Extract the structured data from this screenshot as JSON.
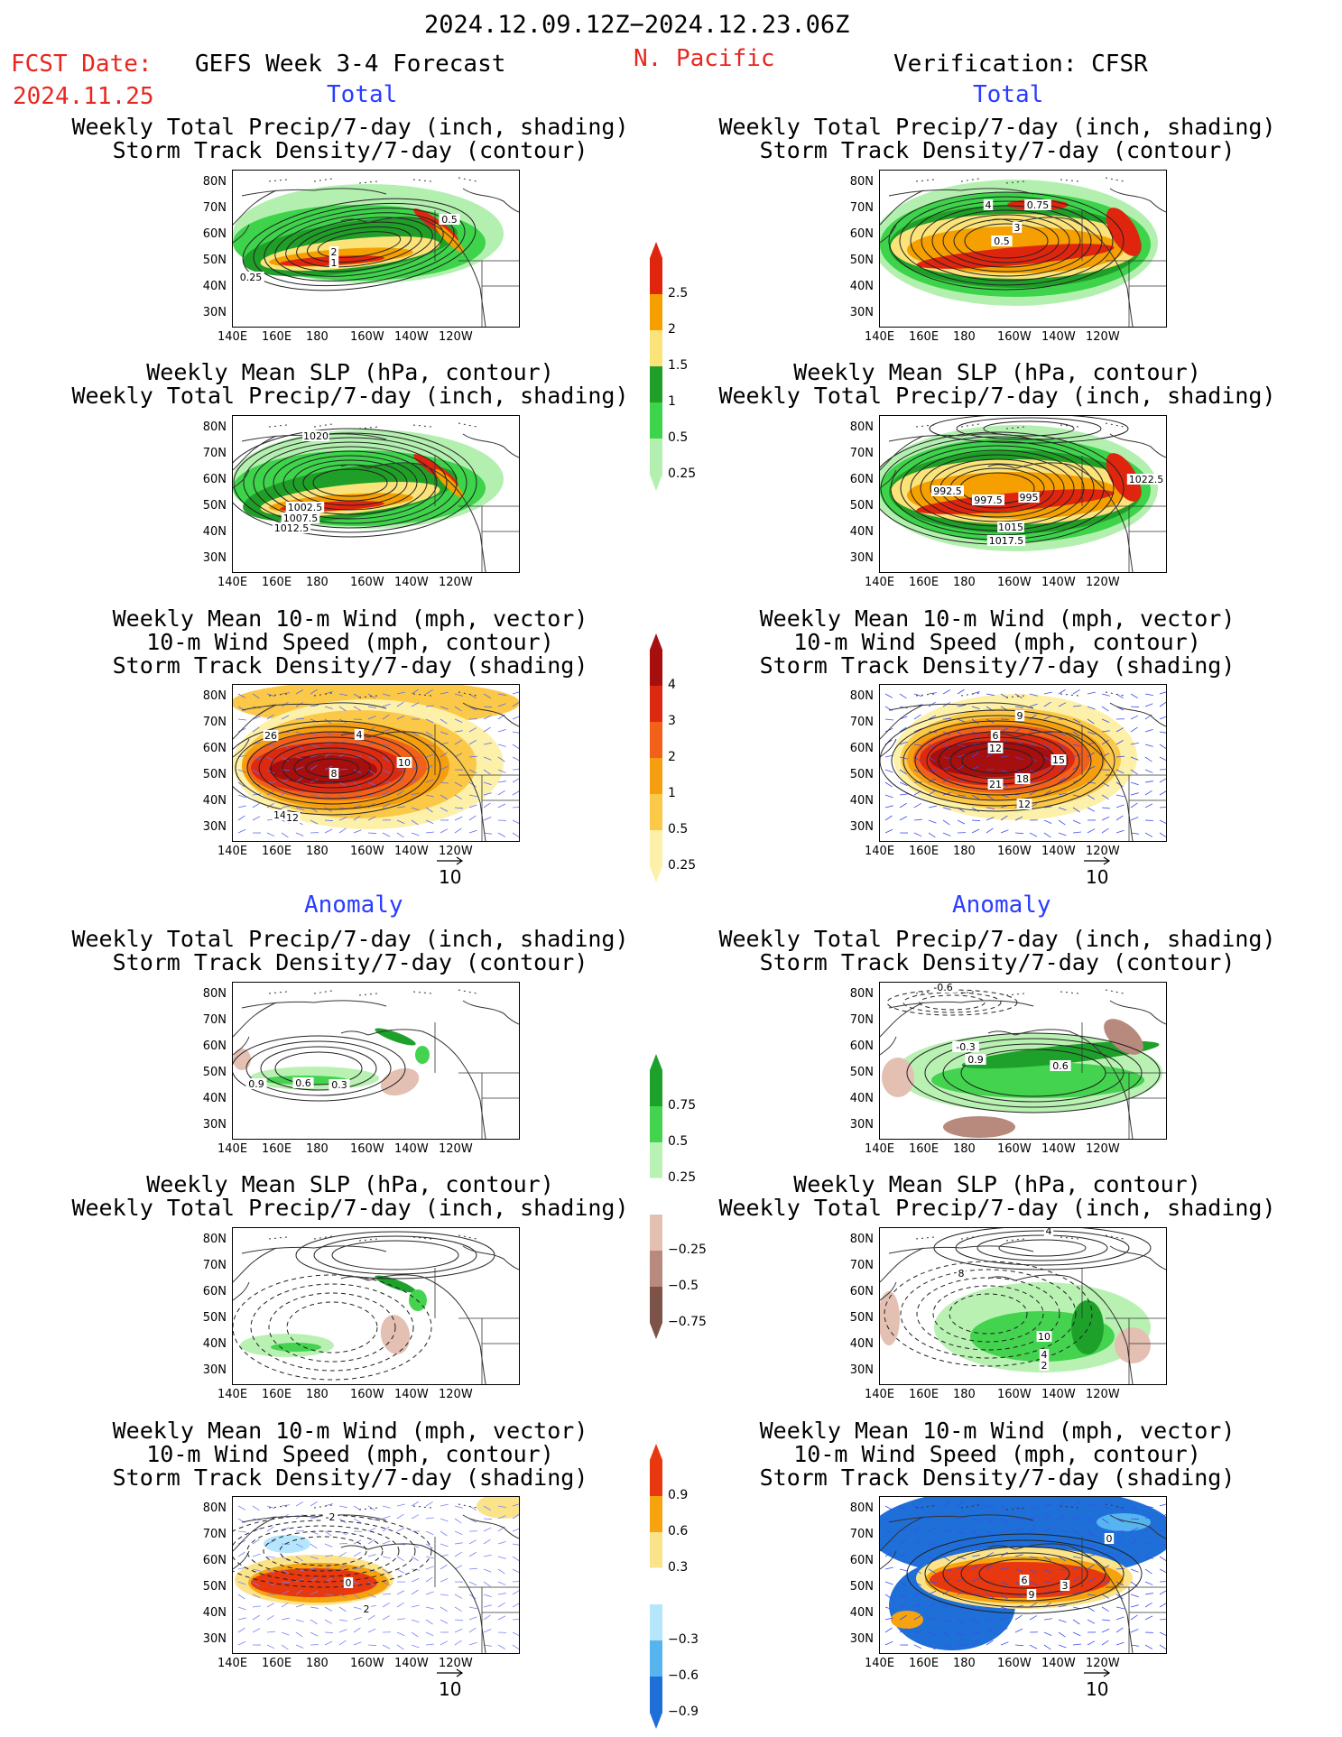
{
  "header": {
    "date_range": "2024.12.09.12Z−2024.12.23.06Z",
    "fcst_label": "FCST Date:",
    "fcst_date": "2024.11.25",
    "forecast_title": "GEFS Week 3-4 Forecast",
    "region": "N. Pacific",
    "verification": "Verification: CFSR"
  },
  "sections": {
    "total": "Total",
    "anomaly": "Anomaly"
  },
  "titles": {
    "precip_track": [
      "Weekly Total Precip/7-day (inch, shading)",
      "Storm Track Density/7-day (contour)"
    ],
    "slp_precip": [
      "Weekly Mean SLP (hPa, contour)",
      "Weekly Total Precip/7-day (inch, shading)"
    ],
    "wind_track": [
      "Weekly Mean 10-m Wind (mph, vector)",
      "10-m Wind Speed (mph, contour)",
      "Storm Track Density/7-day (shading)"
    ]
  },
  "axes": {
    "lat_labels": [
      "80N",
      "70N",
      "60N",
      "50N",
      "40N",
      "30N"
    ],
    "lon_labels": [
      "140E",
      "160E",
      "180",
      "160W",
      "140W",
      "120W"
    ]
  },
  "vector_ref": "10",
  "colorbars": {
    "precip_total": {
      "labels": [
        "2.5",
        "2",
        "1.5",
        "1",
        "0.5",
        "0.25"
      ],
      "colors": [
        "#e0250f",
        "#f5a000",
        "#fbe37a",
        "#1f9f27",
        "#3dd34a",
        "#b3f0b0"
      ]
    },
    "track_total": {
      "labels": [
        "4",
        "3",
        "2",
        "1",
        "0.5",
        "0.25"
      ],
      "colors": [
        "#a70e0e",
        "#dc2a12",
        "#f2601a",
        "#f59e10",
        "#fbc848",
        "#fdf0a8"
      ]
    },
    "precip_anom": {
      "labels": [
        "0.75",
        "0.5",
        "0.25",
        "−0.25",
        "−0.5",
        "−0.75"
      ],
      "colors": [
        "#1ea12b",
        "#43d34f",
        "#b9f1b3",
        "#ffffff",
        "#e4c0b3",
        "#b88a7d",
        "#7d5248"
      ]
    },
    "track_anom": {
      "labels": [
        "0.9",
        "0.6",
        "0.3",
        "−0.3",
        "−0.6",
        "−0.9"
      ],
      "colors": [
        "#e7380f",
        "#f6a30f",
        "#fbe38a",
        "#ffffff",
        "#b6e6fb",
        "#56b5ef",
        "#1e6fd8"
      ]
    }
  },
  "panel_labels": {
    "fc_precip_total": [
      "0.5",
      "2",
      "1",
      "0.25"
    ],
    "ob_precip_total": [
      "4",
      "0.75",
      "3",
      "0.5"
    ],
    "fc_slp_total": [
      "1020",
      "1002.5",
      "1007.5",
      "1012.5"
    ],
    "ob_slp_total": [
      "1022.5",
      "992.5",
      "997.5",
      "995",
      "1015",
      "1017.5"
    ],
    "fc_wind_total": [
      "26",
      "4",
      "10",
      "8",
      "14",
      "12"
    ],
    "ob_wind_total": [
      "9",
      "6",
      "12",
      "15",
      "21",
      "18",
      "12"
    ],
    "fc_precip_anom": [
      "0.9",
      "0.6",
      "0.3"
    ],
    "ob_precip_anom": [
      "-0.6",
      "-0.3",
      "0.9",
      "0.6"
    ],
    "ob_slp_anom": [
      "4",
      "8",
      "10",
      "4",
      "2"
    ],
    "fc_wind_anom": [
      "-2",
      "0",
      "2"
    ],
    "ob_wind_anom": [
      "0",
      "3",
      "9",
      "6"
    ]
  }
}
